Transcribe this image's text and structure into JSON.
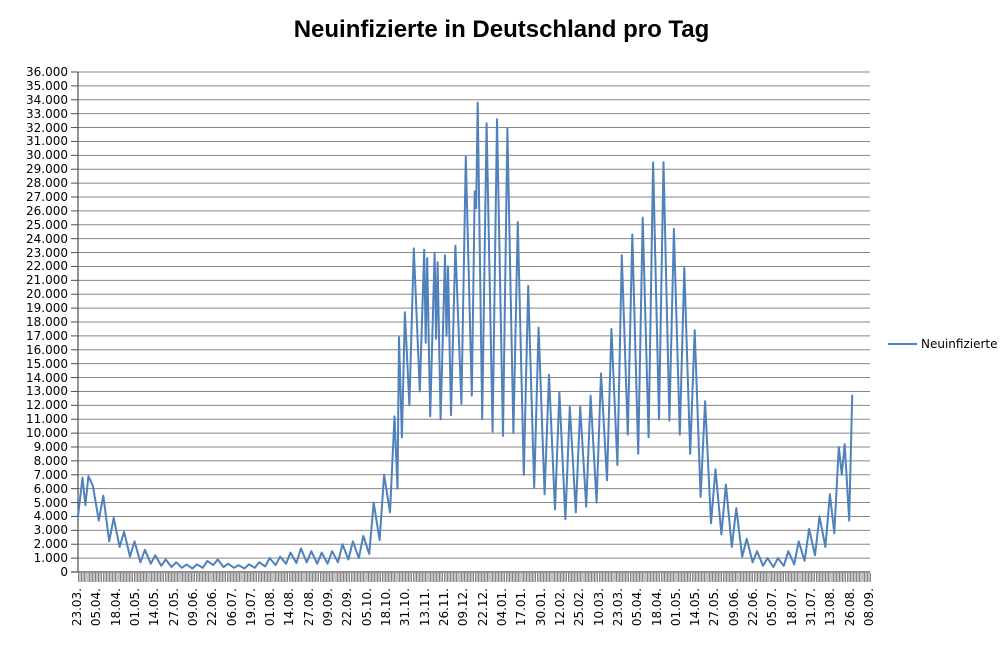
{
  "title": "Neuinfizierte in Deutschland pro Tag",
  "legend": {
    "label": "Neuinfizierte"
  },
  "colors": {
    "series": "#4F81BD",
    "gridline": "#878787",
    "axis": "#4D4D4D",
    "tick_band": "#878787",
    "text": "#000000",
    "background": "#FFFFFF"
  },
  "chart_data": {
    "type": "line",
    "title": "Neuinfizierte in Deutschland pro Tag",
    "xlabel": "",
    "ylabel": "",
    "grid": "horizontal-major",
    "legend_position": "right",
    "y_axis": {
      "min": 0,
      "max": 36000,
      "step": 1000,
      "tick_labels": [
        "36.000",
        "35.000",
        "34.000",
        "33.000",
        "32.000",
        "31.000",
        "30.000",
        "29.000",
        "28.000",
        "27.000",
        "26.000",
        "25.000",
        "24.000",
        "23.000",
        "22.000",
        "21.000",
        "20.000",
        "19.000",
        "18.000",
        "17.000",
        "16.000",
        "15.000",
        "14.000",
        "13.000",
        "12.000",
        "11.000",
        "10.000",
        "9.000",
        "8.000",
        "7.000",
        "6.000",
        "5.000",
        "4.000",
        "3.000",
        "2.000",
        "1.000",
        "0"
      ]
    },
    "x_axis": {
      "tick_labels": [
        "23.03.",
        "05.04.",
        "18.04.",
        "01.05.",
        "14.05.",
        "27.05.",
        "09.06.",
        "22.06.",
        "06.07.",
        "19.07.",
        "01.08.",
        "14.08.",
        "27.08.",
        "09.09.",
        "22.09.",
        "05.10.",
        "18.10.",
        "31.10.",
        "13.11.",
        "26.11.",
        "09.12.",
        "22.12.",
        "04.01.",
        "17.01.",
        "30.01.",
        "12.02.",
        "25.02.",
        "10.03.",
        "23.03.",
        "05.04.",
        "18.04.",
        "01.05.",
        "14.05.",
        "27.05.",
        "09.06.",
        "22.06.",
        "05.07.",
        "18.07.",
        "31.07.",
        "13.08.",
        "26.08.",
        "08.09."
      ],
      "tick_interval_days": 13,
      "range_days": [
        0,
        533
      ]
    },
    "series": [
      {
        "name": "Neuinfizierte",
        "color": "#4F81BD",
        "points": [
          [
            0,
            4000
          ],
          [
            3,
            6800
          ],
          [
            5,
            4800
          ],
          [
            7,
            6900
          ],
          [
            10,
            6200
          ],
          [
            14,
            3700
          ],
          [
            17,
            5500
          ],
          [
            21,
            2200
          ],
          [
            24,
            3900
          ],
          [
            28,
            1800
          ],
          [
            31,
            2900
          ],
          [
            35,
            1100
          ],
          [
            38,
            2200
          ],
          [
            42,
            700
          ],
          [
            45,
            1600
          ],
          [
            49,
            600
          ],
          [
            52,
            1200
          ],
          [
            56,
            450
          ],
          [
            59,
            900
          ],
          [
            63,
            350
          ],
          [
            66,
            700
          ],
          [
            70,
            300
          ],
          [
            73,
            550
          ],
          [
            77,
            250
          ],
          [
            80,
            550
          ],
          [
            84,
            300
          ],
          [
            87,
            800
          ],
          [
            91,
            500
          ],
          [
            94,
            900
          ],
          [
            98,
            350
          ],
          [
            101,
            600
          ],
          [
            105,
            300
          ],
          [
            108,
            500
          ],
          [
            112,
            250
          ],
          [
            115,
            550
          ],
          [
            119,
            300
          ],
          [
            122,
            700
          ],
          [
            126,
            400
          ],
          [
            129,
            1000
          ],
          [
            133,
            500
          ],
          [
            136,
            1100
          ],
          [
            140,
            600
          ],
          [
            143,
            1400
          ],
          [
            147,
            650
          ],
          [
            150,
            1700
          ],
          [
            154,
            700
          ],
          [
            157,
            1500
          ],
          [
            161,
            600
          ],
          [
            164,
            1400
          ],
          [
            168,
            600
          ],
          [
            171,
            1500
          ],
          [
            175,
            700
          ],
          [
            178,
            2000
          ],
          [
            182,
            900
          ],
          [
            185,
            2200
          ],
          [
            189,
            1000
          ],
          [
            192,
            2600
          ],
          [
            196,
            1300
          ],
          [
            199,
            5000
          ],
          [
            203,
            2300
          ],
          [
            206,
            7000
          ],
          [
            210,
            4300
          ],
          [
            213,
            11200
          ],
          [
            215,
            6000
          ],
          [
            216,
            16900
          ],
          [
            218,
            9700
          ],
          [
            220,
            18700
          ],
          [
            223,
            12000
          ],
          [
            226,
            23300
          ],
          [
            230,
            13000
          ],
          [
            233,
            23200
          ],
          [
            234,
            16500
          ],
          [
            235,
            22600
          ],
          [
            237,
            11200
          ],
          [
            240,
            23000
          ],
          [
            241,
            16800
          ],
          [
            242,
            22300
          ],
          [
            244,
            11000
          ],
          [
            247,
            22800
          ],
          [
            248,
            17000
          ],
          [
            249,
            22000
          ],
          [
            251,
            11300
          ],
          [
            254,
            23500
          ],
          [
            258,
            12100
          ],
          [
            261,
            29900
          ],
          [
            265,
            12700
          ],
          [
            267,
            27400
          ],
          [
            268,
            26200
          ],
          [
            269,
            33800
          ],
          [
            272,
            11000
          ],
          [
            275,
            32300
          ],
          [
            279,
            10100
          ],
          [
            282,
            32600
          ],
          [
            286,
            9800
          ],
          [
            289,
            31900
          ],
          [
            293,
            10000
          ],
          [
            296,
            25200
          ],
          [
            300,
            7000
          ],
          [
            303,
            20600
          ],
          [
            307,
            6100
          ],
          [
            310,
            17600
          ],
          [
            314,
            5600
          ],
          [
            317,
            14200
          ],
          [
            321,
            4500
          ],
          [
            324,
            12900
          ],
          [
            328,
            3800
          ],
          [
            331,
            11900
          ],
          [
            335,
            4300
          ],
          [
            338,
            11900
          ],
          [
            342,
            4700
          ],
          [
            345,
            12700
          ],
          [
            349,
            5000
          ],
          [
            352,
            14300
          ],
          [
            356,
            6600
          ],
          [
            359,
            17500
          ],
          [
            363,
            7700
          ],
          [
            366,
            22800
          ],
          [
            370,
            9900
          ],
          [
            373,
            24300
          ],
          [
            377,
            8500
          ],
          [
            380,
            25500
          ],
          [
            384,
            9700
          ],
          [
            387,
            29500
          ],
          [
            391,
            11000
          ],
          [
            394,
            29500
          ],
          [
            398,
            10900
          ],
          [
            401,
            24700
          ],
          [
            405,
            9900
          ],
          [
            408,
            21900
          ],
          [
            412,
            8500
          ],
          [
            415,
            17400
          ],
          [
            419,
            5400
          ],
          [
            422,
            12300
          ],
          [
            426,
            3500
          ],
          [
            429,
            7400
          ],
          [
            433,
            2700
          ],
          [
            436,
            6300
          ],
          [
            440,
            1800
          ],
          [
            443,
            4600
          ],
          [
            447,
            1100
          ],
          [
            450,
            2400
          ],
          [
            454,
            700
          ],
          [
            457,
            1500
          ],
          [
            461,
            450
          ],
          [
            464,
            1000
          ],
          [
            468,
            350
          ],
          [
            471,
            1000
          ],
          [
            475,
            450
          ],
          [
            478,
            1500
          ],
          [
            482,
            550
          ],
          [
            485,
            2200
          ],
          [
            489,
            800
          ],
          [
            492,
            3100
          ],
          [
            496,
            1200
          ],
          [
            499,
            4000
          ],
          [
            503,
            1800
          ],
          [
            506,
            5600
          ],
          [
            509,
            2800
          ],
          [
            512,
            9000
          ],
          [
            514,
            7000
          ],
          [
            516,
            9200
          ],
          [
            519,
            3700
          ],
          [
            521,
            12700
          ]
        ]
      }
    ]
  }
}
